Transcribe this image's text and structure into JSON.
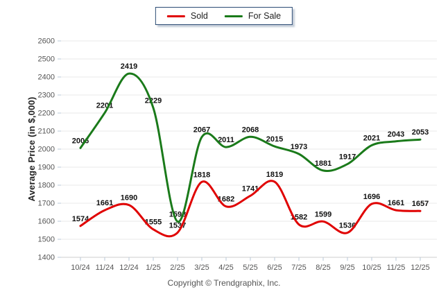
{
  "footer": {
    "text": "Copyright © Trendgraphix, Inc."
  },
  "colors": {
    "grid": "#e8e8e8",
    "axis": "#cccccc",
    "tick": "#b9c8da",
    "tick_label": "#555555",
    "data_label": "#111111",
    "sold": "#e00000",
    "for_sale": "#1a7a1a",
    "legend_border": "#2a4a73"
  },
  "chart_data": {
    "type": "line",
    "title": "",
    "xlabel": "",
    "ylabel": "Average Price (in $,000)",
    "categories": [
      "10/24",
      "11/24",
      "12/24",
      "1/25",
      "2/25",
      "3/25",
      "4/25",
      "5/25",
      "6/25",
      "7/25",
      "8/25",
      "9/25",
      "10/25",
      "11/25",
      "12/25"
    ],
    "series": [
      {
        "name": "Sold",
        "color": "#e00000",
        "values": [
          1574,
          1661,
          1690,
          1555,
          1537,
          1818,
          1682,
          1741,
          1819,
          1582,
          1599,
          1536,
          1696,
          1661,
          1657
        ]
      },
      {
        "name": "For Sale",
        "color": "#1a7a1a",
        "values": [
          2006,
          2201,
          2419,
          2229,
          1598,
          2067,
          2011,
          2068,
          2015,
          1973,
          1881,
          1917,
          2021,
          2043,
          2053
        ]
      }
    ],
    "ylim": [
      1400,
      2600
    ],
    "ytick_step": 100,
    "grid": true,
    "smooth": true,
    "data_labels": true,
    "legend_position": "top-center"
  }
}
